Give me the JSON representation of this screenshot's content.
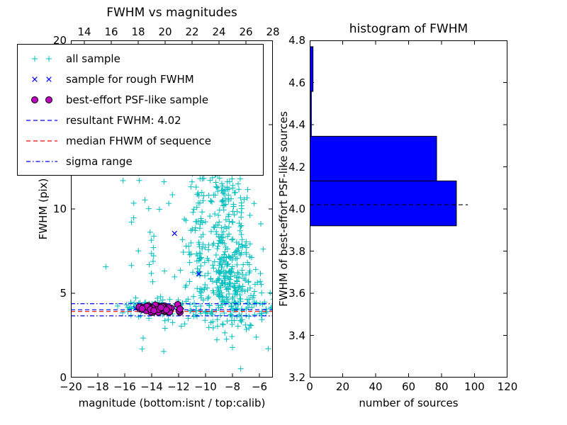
{
  "chart_data": [
    {
      "type": "scatter",
      "title": "FWHM vs magnitudes",
      "xlabel": "magnitude (bottom:isnt / top:calib)",
      "ylabel": "FWHM (pix)",
      "xlim": [
        -20,
        -5
      ],
      "ylim": [
        0,
        20
      ],
      "x_ticks": [
        -20,
        -18,
        -16,
        -14,
        -12,
        -10,
        -8,
        -6
      ],
      "top_ticks": [
        14,
        16,
        18,
        20,
        22,
        24,
        26,
        28
      ],
      "top_axis_offset": 33,
      "y_ticks": [
        0,
        5,
        10,
        15,
        20
      ],
      "series": [
        {
          "name": "all sample",
          "marker": "plus",
          "color": "#00bfbf",
          "clusters": [
            {
              "cx": -8.2,
              "cy": 6.0,
              "sx": 0.9,
              "sy": 1.7,
              "n": 260
            },
            {
              "cx": -8.3,
              "cy": 10.0,
              "sx": 0.8,
              "sy": 1.5,
              "n": 80
            },
            {
              "cx": -7.9,
              "cy": 15.0,
              "sx": 0.6,
              "sy": 2.6,
              "n": 60
            },
            {
              "cx": -10.35,
              "cy": 8.6,
              "sx": 0.22,
              "sy": 2.3,
              "n": 55
            },
            {
              "cx": -11.2,
              "cy": 8.3,
              "sx": 0.35,
              "sy": 2.0,
              "n": 28
            },
            {
              "cx": -13.6,
              "cy": 8.5,
              "sx": 1.1,
              "sy": 3.2,
              "n": 38
            },
            {
              "cx": -14.3,
              "cy": 4.15,
              "sx": 1.2,
              "sy": 0.3,
              "n": 55
            },
            {
              "cx": -9.4,
              "cy": 4.05,
              "sx": 1.8,
              "sy": 0.5,
              "n": 70
            },
            {
              "cx": -6.3,
              "cy": 4.4,
              "sx": 0.7,
              "sy": 1.1,
              "n": 45
            },
            {
              "cx": -15.6,
              "cy": 12.6,
              "sx": 0.4,
              "sy": 1.1,
              "n": 6
            },
            {
              "cx": -12.7,
              "cy": 17.5,
              "sx": 0.8,
              "sy": 1.6,
              "n": 7
            },
            {
              "cx": -9.7,
              "cy": 13.5,
              "sx": 0.7,
              "sy": 2.0,
              "n": 30
            }
          ]
        },
        {
          "name": "sample for rough FWHM",
          "marker": "x",
          "color": "#0000ff",
          "points": [
            [
              -15.75,
              12.4
            ],
            [
              -12.3,
              8.55
            ],
            [
              -10.5,
              6.15
            ],
            [
              -15.2,
              4.1
            ],
            [
              -14.6,
              3.95
            ],
            [
              -14.0,
              4.2
            ],
            [
              -13.4,
              4.05
            ],
            [
              -12.8,
              3.9
            ],
            [
              -12.35,
              4.15
            ],
            [
              -11.95,
              4.05
            ],
            [
              -13.1,
              4.3
            ],
            [
              -14.9,
              4.3
            ]
          ]
        },
        {
          "name": "best-effort PSF-like sample",
          "marker": "circle",
          "color": "#bf00bf",
          "edge": "#000000",
          "clusters": [
            {
              "cx": -13.55,
              "cy": 4.08,
              "sx": 0.85,
              "sy": 0.12,
              "n": 60,
              "clamp": {
                "x": [
                  -15.3,
                  -11.9
                ],
                "y": [
                  3.87,
                  4.33
                ]
              }
            }
          ]
        }
      ],
      "hlines": [
        {
          "name": "sigma range upper",
          "y": 4.38,
          "color": "#0000ff",
          "style": "dashdot"
        },
        {
          "name": "resultant FWHM",
          "y": 4.02,
          "color": "#0000ff",
          "style": "dashed"
        },
        {
          "name": "median FHWM of sequence",
          "y": 3.92,
          "color": "#ff0000",
          "style": "dashed"
        },
        {
          "name": "sigma range lower",
          "y": 3.66,
          "color": "#0000ff",
          "style": "dashdot"
        }
      ],
      "legend": [
        {
          "label": "all sample",
          "type": "marker",
          "marker": "plus",
          "color": "#00bfbf"
        },
        {
          "label": "sample for rough FWHM",
          "type": "marker",
          "marker": "x",
          "color": "#0000ff"
        },
        {
          "label": "best-effort PSF-like sample",
          "type": "marker",
          "marker": "circle",
          "color": "#bf00bf"
        },
        {
          "label": "resultant FWHM: 4.02",
          "type": "line",
          "style": "dashed",
          "color": "#0000ff"
        },
        {
          "label": "median FHWM of sequence",
          "type": "line",
          "style": "dashed",
          "color": "#ff0000"
        },
        {
          "label": "sigma range",
          "type": "line",
          "style": "dashdot",
          "color": "#0000ff"
        }
      ]
    },
    {
      "type": "bar",
      "orientation": "horizontal",
      "title": "histogram of FWHM",
      "xlabel": "number of sources",
      "ylabel": "FWHM of best-effort PSF-like sources",
      "xlim": [
        0,
        120
      ],
      "ylim": [
        3.2,
        4.8
      ],
      "x_ticks": [
        0,
        20,
        40,
        60,
        80,
        100,
        120
      ],
      "y_ticks": [
        3.2,
        3.4,
        3.6,
        3.8,
        4.0,
        4.2,
        4.4,
        4.6,
        4.8
      ],
      "y_tick_decimals": 1,
      "bar_color": "#0000ff",
      "bar_edge": "#000000",
      "bars": [
        {
          "y0": 3.92,
          "y1": 4.133,
          "count": 89
        },
        {
          "y0": 4.133,
          "y1": 4.345,
          "count": 77
        },
        {
          "y0": 4.345,
          "y1": 4.558,
          "count": 1
        },
        {
          "y0": 4.558,
          "y1": 4.77,
          "count": 2
        }
      ],
      "mean_line": {
        "y": 4.02,
        "x0": 0,
        "x1": 96,
        "color": "#000000",
        "style": "dashed"
      }
    }
  ]
}
